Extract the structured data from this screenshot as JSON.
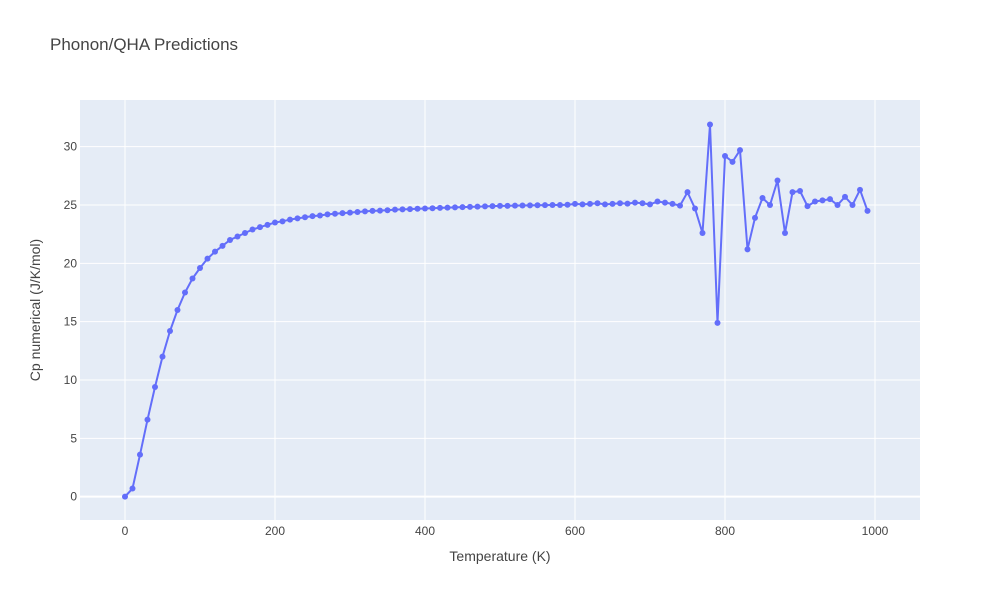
{
  "chart_data": {
    "type": "line",
    "title": "Phonon/QHA Predictions",
    "xlabel": "Temperature (K)",
    "ylabel": "Cp numerical (J/K/mol)",
    "xlim": [
      -60,
      1060
    ],
    "ylim": [
      -2,
      34
    ],
    "xticks": [
      0,
      200,
      400,
      600,
      800,
      1000
    ],
    "yticks": [
      0,
      5,
      10,
      15,
      20,
      25,
      30
    ],
    "grid": true,
    "colors": {
      "line": "#636efa",
      "plot_bg": "#e5ecf6",
      "grid": "#ffffff"
    },
    "series": [
      {
        "x": [
          0,
          10,
          20,
          30,
          40,
          50,
          60,
          70,
          80,
          90,
          100,
          110,
          120,
          130,
          140,
          150,
          160,
          170,
          180,
          190,
          200,
          210,
          220,
          230,
          240,
          250,
          260,
          270,
          280,
          290,
          300,
          310,
          320,
          330,
          340,
          350,
          360,
          370,
          380,
          390,
          400,
          410,
          420,
          430,
          440,
          450,
          460,
          470,
          480,
          490,
          500,
          510,
          520,
          530,
          540,
          550,
          560,
          570,
          580,
          590,
          600,
          610,
          620,
          630,
          640,
          650,
          660,
          670,
          680,
          690,
          700,
          710,
          720,
          730,
          740,
          750,
          760,
          770,
          780,
          790,
          800,
          810,
          820,
          830,
          840,
          850,
          860,
          870,
          880,
          890,
          900,
          910,
          920,
          930,
          940,
          950,
          960,
          970,
          980,
          990
        ],
        "y": [
          0.0,
          0.7,
          3.6,
          6.6,
          9.4,
          12.0,
          14.2,
          16.0,
          17.5,
          18.7,
          19.6,
          20.4,
          21.0,
          21.5,
          22.0,
          22.3,
          22.6,
          22.9,
          23.1,
          23.3,
          23.5,
          23.6,
          23.75,
          23.85,
          23.95,
          24.05,
          24.1,
          24.2,
          24.25,
          24.3,
          24.35,
          24.4,
          24.45,
          24.5,
          24.52,
          24.55,
          24.6,
          24.62,
          24.65,
          24.68,
          24.7,
          24.72,
          24.75,
          24.77,
          24.8,
          24.82,
          24.84,
          24.86,
          24.88,
          24.9,
          24.92,
          24.93,
          24.95,
          24.96,
          24.97,
          24.98,
          24.99,
          25.0,
          25.0,
          25.02,
          25.1,
          25.05,
          25.1,
          25.15,
          25.05,
          25.1,
          25.15,
          25.12,
          25.2,
          25.15,
          25.05,
          25.3,
          25.2,
          25.1,
          24.95,
          26.1,
          24.7,
          22.6,
          31.9,
          14.9,
          29.2,
          28.7,
          29.7,
          21.2,
          23.9,
          25.6,
          25.0,
          27.1,
          22.6,
          26.1,
          26.2,
          24.9,
          25.3,
          25.4,
          25.5,
          25.0,
          25.7,
          25.0,
          26.3,
          24.5
        ]
      }
    ]
  }
}
